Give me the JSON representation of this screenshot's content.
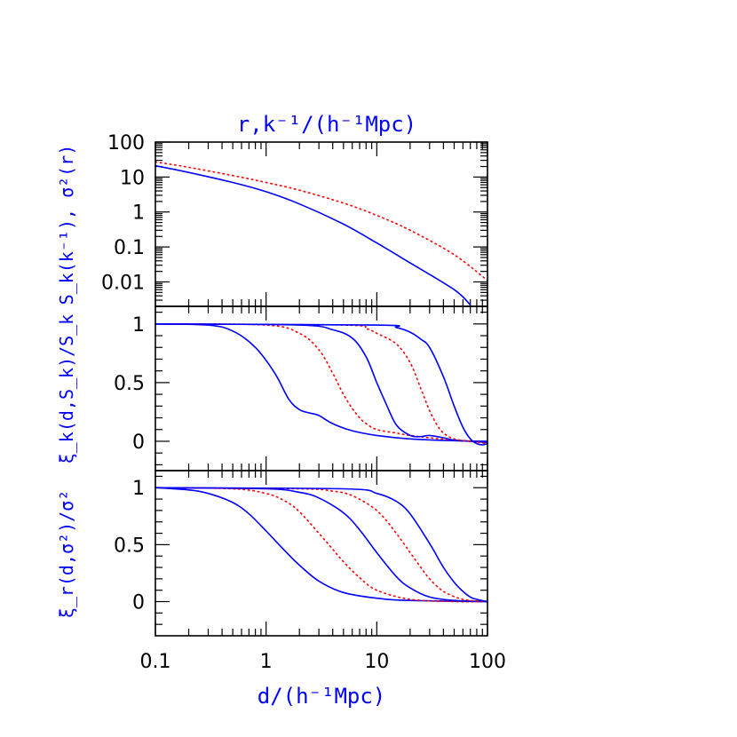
{
  "chart_data": [
    {
      "type": "line",
      "panel": "top",
      "xscale": "log",
      "yscale": "log",
      "xlim": [
        0.1,
        100
      ],
      "ylim": [
        0.002,
        100
      ],
      "title": "r,k⁻¹/(h⁻¹Mpc)",
      "ylabel": "S_k(k⁻¹), σ²(r)",
      "yticks": [
        100,
        10,
        1,
        0.1,
        0.01
      ],
      "ytick_labels": [
        "100",
        "10",
        "1",
        "0.1",
        "0.01"
      ],
      "series": [
        {
          "color": "#0000ff",
          "style": "solid",
          "x": [
            0.1,
            0.2,
            0.5,
            1,
            2,
            5,
            10,
            20,
            50,
            70
          ],
          "y": [
            21,
            13.5,
            7,
            3.8,
            1.7,
            0.45,
            0.13,
            0.035,
            0.006,
            0.0022
          ]
        },
        {
          "color": "#ff0000",
          "style": "dotted",
          "x": [
            0.1,
            0.2,
            0.5,
            1,
            2,
            5,
            10,
            20,
            50,
            100
          ],
          "y": [
            27,
            19,
            11,
            7,
            4.2,
            1.8,
            0.8,
            0.3,
            0.06,
            0.011
          ]
        }
      ]
    },
    {
      "type": "line",
      "panel": "middle",
      "xscale": "log",
      "xlim": [
        0.1,
        100
      ],
      "ylim": [
        -0.25,
        1.15
      ],
      "ylabel": "ξ_k(d,S_k)/S_k",
      "yticks": [
        1,
        0.5,
        0
      ],
      "ytick_labels": [
        "1",
        "0.5",
        "0"
      ],
      "series": [
        {
          "color": "#0000ff",
          "style": "solid",
          "x": [
            0.1,
            0.3,
            0.5,
            0.8,
            1.2,
            1.6,
            2,
            2.5,
            3,
            4,
            6,
            10,
            20,
            50,
            100
          ],
          "y": [
            1,
            0.99,
            0.94,
            0.8,
            0.58,
            0.36,
            0.27,
            0.24,
            0.22,
            0.15,
            0.09,
            0.05,
            0.02,
            0.005,
            0
          ]
        },
        {
          "color": "#ff0000",
          "style": "dotted",
          "x": [
            0.1,
            1,
            2,
            3,
            4,
            5,
            6,
            7,
            8,
            10,
            15,
            20,
            30,
            50,
            100
          ],
          "y": [
            1,
            0.99,
            0.92,
            0.78,
            0.58,
            0.4,
            0.28,
            0.2,
            0.15,
            0.1,
            0.07,
            0.05,
            0.03,
            0.01,
            -0.01
          ]
        },
        {
          "color": "#0000ff",
          "style": "solid",
          "x": [
            0.1,
            2,
            4,
            6,
            8,
            10,
            12,
            15,
            20,
            25,
            30,
            40,
            50,
            70,
            100
          ],
          "y": [
            1,
            0.99,
            0.95,
            0.88,
            0.72,
            0.5,
            0.33,
            0.14,
            0.05,
            0.04,
            0.05,
            0.03,
            0.01,
            0,
            -0.01
          ]
        },
        {
          "color": "#ff0000",
          "style": "dotted",
          "x": [
            0.1,
            5,
            8,
            10,
            15,
            20,
            25,
            30,
            35,
            40,
            50,
            70,
            100
          ],
          "y": [
            1,
            0.99,
            0.96,
            0.92,
            0.83,
            0.67,
            0.45,
            0.26,
            0.14,
            0.07,
            0.02,
            0,
            -0.02
          ]
        },
        {
          "color": "#0000ff",
          "style": "solid",
          "x": [
            0.1,
            10,
            15,
            20,
            25,
            30,
            40,
            50,
            60,
            70,
            80,
            90,
            100
          ],
          "y": [
            1,
            0.99,
            0.97,
            0.93,
            0.87,
            0.8,
            0.55,
            0.3,
            0.12,
            0.02,
            -0.02,
            -0.03,
            -0.02
          ]
        }
      ]
    },
    {
      "type": "line",
      "panel": "bottom",
      "xscale": "log",
      "xlim": [
        0.1,
        100
      ],
      "ylim": [
        -0.3,
        1.15
      ],
      "xlabel": "d/(h⁻¹Mpc)",
      "ylabel": "ξ_r(d,σ²)/σ²",
      "yticks": [
        1,
        0.5,
        0
      ],
      "ytick_labels": [
        "1",
        "0.5",
        "0"
      ],
      "xticks": [
        0.1,
        1,
        10,
        100
      ],
      "xtick_labels": [
        "0.1",
        "1",
        "10",
        "100"
      ],
      "series": [
        {
          "color": "#0000ff",
          "style": "solid",
          "x": [
            0.1,
            0.2,
            0.3,
            0.5,
            0.7,
            1,
            1.5,
            2,
            3,
            5,
            10,
            20,
            100
          ],
          "y": [
            1,
            0.98,
            0.95,
            0.87,
            0.77,
            0.62,
            0.44,
            0.32,
            0.18,
            0.08,
            0.03,
            0.01,
            0
          ]
        },
        {
          "color": "#ff0000",
          "style": "dotted",
          "x": [
            0.1,
            0.5,
            1,
            1.5,
            2,
            3,
            4,
            5,
            7,
            10,
            20,
            50,
            100
          ],
          "y": [
            1,
            0.99,
            0.95,
            0.88,
            0.79,
            0.6,
            0.46,
            0.35,
            0.21,
            0.1,
            0.02,
            0,
            0
          ]
        },
        {
          "color": "#0000ff",
          "style": "solid",
          "x": [
            0.1,
            1,
            2,
            3,
            5,
            7,
            10,
            15,
            20,
            30,
            50,
            100
          ],
          "y": [
            1,
            0.99,
            0.96,
            0.91,
            0.78,
            0.63,
            0.43,
            0.22,
            0.12,
            0.04,
            0.01,
            0
          ]
        },
        {
          "color": "#ff0000",
          "style": "dotted",
          "x": [
            0.1,
            2,
            4,
            6,
            10,
            15,
            20,
            25,
            30,
            40,
            60,
            100
          ],
          "y": [
            1,
            0.99,
            0.97,
            0.93,
            0.8,
            0.6,
            0.43,
            0.3,
            0.2,
            0.09,
            0.02,
            0
          ]
        },
        {
          "color": "#0000ff",
          "style": "solid",
          "x": [
            0.1,
            5,
            10,
            15,
            20,
            30,
            40,
            50,
            60,
            70,
            80,
            100
          ],
          "y": [
            1,
            0.99,
            0.95,
            0.88,
            0.77,
            0.51,
            0.3,
            0.17,
            0.09,
            0.04,
            0.02,
            0
          ]
        }
      ]
    }
  ]
}
